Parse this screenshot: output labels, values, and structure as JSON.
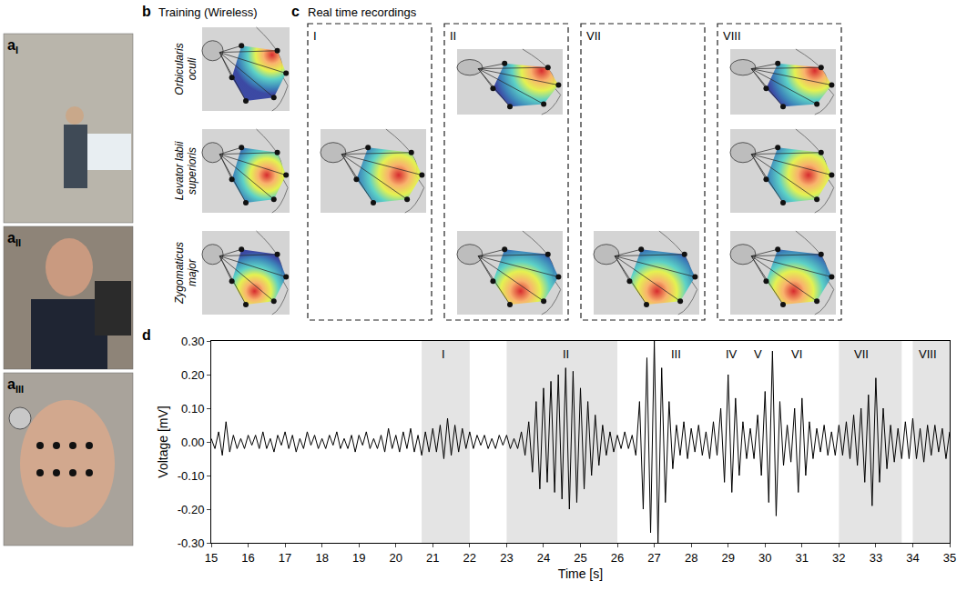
{
  "panel_a": {
    "label": "a",
    "photos": [
      "I",
      "II",
      "III"
    ]
  },
  "panel_b": {
    "label": "b",
    "title": "Training (Wireless)",
    "muscles": [
      "Orbicularis oculi",
      "Levator labii superioris",
      "Zygomaticus major"
    ]
  },
  "panel_c": {
    "label": "c",
    "title": "Real time recordings",
    "windows": [
      {
        "label": "I",
        "shows": [
          "Levator labii superioris"
        ]
      },
      {
        "label": "II",
        "shows": [
          "Orbicularis oculi",
          "Zygomaticus major"
        ]
      },
      {
        "label": "VII",
        "shows": [
          "Zygomaticus major"
        ]
      },
      {
        "label": "VIII",
        "shows": [
          "Orbicularis oculi",
          "Levator labii superioris",
          "Zygomaticus major"
        ]
      }
    ]
  },
  "chart_data": {
    "label": "d",
    "type": "line",
    "color": "#000000",
    "xlabel": "Time [s]",
    "ylabel": "Voltage [mV]",
    "xlim": [
      15,
      35
    ],
    "xticks": [
      15,
      16,
      17,
      18,
      19,
      20,
      21,
      22,
      23,
      24,
      25,
      26,
      27,
      28,
      29,
      30,
      31,
      32,
      33,
      34,
      35
    ],
    "ylim": [
      -0.3,
      0.3
    ],
    "yticks": [
      {
        "value": -0.3,
        "label": "-0.30"
      },
      {
        "value": -0.2,
        "label": "-0.20"
      },
      {
        "value": -0.1,
        "label": "-0.10"
      },
      {
        "value": 0,
        "label": "0.00"
      },
      {
        "value": 0.1,
        "label": "0.10"
      },
      {
        "value": 0.2,
        "label": "0.20"
      },
      {
        "value": 0.3,
        "label": "0.30"
      }
    ],
    "shaded_regions": [
      {
        "label": "I",
        "start": 20.7,
        "end": 22
      },
      {
        "label": "II",
        "start": 23,
        "end": 26
      },
      {
        "label": "VII",
        "start": 32,
        "end": 33.7
      },
      {
        "label": "VIII",
        "start": 34,
        "end": 35
      }
    ],
    "annotations": [
      {
        "text": "I",
        "x": 21.3,
        "y": 0.26
      },
      {
        "text": "II",
        "x": 24.6,
        "y": 0.26
      },
      {
        "text": "III",
        "x": 27.6,
        "y": 0.26
      },
      {
        "text": "IV",
        "x": 29.1,
        "y": 0.26
      },
      {
        "text": "V",
        "x": 29.8,
        "y": 0.26
      },
      {
        "text": "VI",
        "x": 30.85,
        "y": 0.26
      },
      {
        "text": "VII",
        "x": 32.6,
        "y": 0.26
      },
      {
        "text": "VIII",
        "x": 34.4,
        "y": 0.26
      }
    ],
    "x": [
      15.0,
      15.1,
      15.2,
      15.3,
      15.4,
      15.5,
      15.6,
      15.7,
      15.8,
      15.9,
      16.0,
      16.1,
      16.2,
      16.3,
      16.4,
      16.5,
      16.6,
      16.7,
      16.8,
      16.9,
      17.0,
      17.1,
      17.2,
      17.3,
      17.4,
      17.5,
      17.6,
      17.7,
      17.8,
      17.9,
      18.0,
      18.1,
      18.2,
      18.3,
      18.4,
      18.5,
      18.6,
      18.7,
      18.8,
      18.9,
      19.0,
      19.1,
      19.2,
      19.3,
      19.4,
      19.5,
      19.6,
      19.7,
      19.8,
      19.9,
      20.0,
      20.1,
      20.2,
      20.3,
      20.4,
      20.5,
      20.6,
      20.7,
      20.8,
      20.9,
      21.0,
      21.1,
      21.2,
      21.3,
      21.4,
      21.5,
      21.6,
      21.7,
      21.8,
      21.9,
      22.0,
      22.1,
      22.2,
      22.3,
      22.4,
      22.5,
      22.6,
      22.7,
      22.8,
      22.9,
      23.0,
      23.1,
      23.2,
      23.3,
      23.4,
      23.5,
      23.6,
      23.7,
      23.8,
      23.9,
      24.0,
      24.1,
      24.2,
      24.3,
      24.4,
      24.5,
      24.6,
      24.7,
      24.8,
      24.9,
      25.0,
      25.1,
      25.2,
      25.3,
      25.4,
      25.5,
      25.6,
      25.7,
      25.8,
      25.9,
      26.0,
      26.1,
      26.2,
      26.3,
      26.4,
      26.5,
      26.6,
      26.7,
      26.8,
      26.9,
      27.0,
      27.1,
      27.2,
      27.3,
      27.4,
      27.5,
      27.6,
      27.7,
      27.8,
      27.9,
      28.0,
      28.1,
      28.2,
      28.3,
      28.4,
      28.5,
      28.6,
      28.7,
      28.8,
      28.9,
      29.0,
      29.1,
      29.2,
      29.3,
      29.4,
      29.5,
      29.6,
      29.7,
      29.8,
      29.9,
      30.0,
      30.1,
      30.2,
      30.3,
      30.4,
      30.5,
      30.6,
      30.7,
      30.8,
      30.9,
      31.0,
      31.1,
      31.2,
      31.3,
      31.4,
      31.5,
      31.6,
      31.7,
      31.8,
      31.9,
      32.0,
      32.1,
      32.2,
      32.3,
      32.4,
      32.5,
      32.6,
      32.7,
      32.8,
      32.9,
      33.0,
      33.1,
      33.2,
      33.3,
      33.4,
      33.5,
      33.6,
      33.7,
      33.8,
      33.9,
      34.0,
      34.1,
      34.2,
      34.3,
      34.4,
      34.5,
      34.6,
      34.7,
      34.8,
      34.9,
      35.0
    ],
    "values": [
      0.01,
      -0.02,
      0.03,
      -0.04,
      0.06,
      -0.03,
      0.02,
      -0.02,
      0.01,
      -0.02,
      0.02,
      -0.01,
      0.02,
      -0.02,
      0.03,
      -0.02,
      0.01,
      -0.03,
      0.02,
      -0.01,
      0.03,
      -0.02,
      0.02,
      -0.03,
      0.01,
      -0.02,
      0.03,
      -0.01,
      0.02,
      -0.02,
      0.01,
      -0.02,
      0.02,
      -0.01,
      0.03,
      -0.02,
      0.01,
      -0.02,
      0.02,
      -0.03,
      0.02,
      -0.01,
      0.03,
      -0.02,
      0.01,
      -0.02,
      0.02,
      -0.03,
      0.04,
      -0.02,
      0.02,
      -0.03,
      0.03,
      -0.02,
      0.04,
      -0.03,
      0.02,
      -0.04,
      0.03,
      -0.03,
      0.04,
      -0.03,
      0.05,
      -0.05,
      0.07,
      -0.04,
      0.05,
      -0.03,
      0.04,
      -0.02,
      0.03,
      -0.02,
      0.02,
      -0.01,
      0.02,
      -0.02,
      0.01,
      -0.02,
      0.02,
      -0.01,
      0.02,
      -0.02,
      0.01,
      -0.02,
      0.03,
      -0.04,
      0.06,
      -0.09,
      0.12,
      -0.14,
      0.16,
      -0.12,
      0.18,
      -0.15,
      0.2,
      -0.17,
      0.22,
      -0.2,
      0.21,
      -0.18,
      0.16,
      -0.14,
      0.12,
      -0.1,
      0.08,
      -0.07,
      0.05,
      -0.04,
      0.03,
      -0.03,
      0.02,
      -0.02,
      0.03,
      -0.02,
      0.02,
      -0.04,
      0.12,
      -0.2,
      0.25,
      -0.27,
      0.3,
      -0.3,
      0.22,
      -0.18,
      0.12,
      -0.08,
      0.05,
      -0.04,
      0.06,
      -0.05,
      0.04,
      -0.03,
      0.05,
      -0.04,
      0.03,
      -0.05,
      0.06,
      -0.04,
      0.1,
      -0.12,
      0.2,
      -0.15,
      0.13,
      -0.1,
      0.06,
      -0.05,
      0.04,
      -0.05,
      0.08,
      -0.1,
      0.15,
      -0.18,
      0.27,
      -0.22,
      0.12,
      -0.07,
      0.05,
      -0.06,
      0.1,
      -0.15,
      0.13,
      -0.1,
      0.06,
      -0.05,
      0.04,
      -0.03,
      0.05,
      -0.04,
      0.03,
      -0.04,
      0.05,
      -0.04,
      0.06,
      -0.05,
      0.08,
      -0.07,
      0.1,
      -0.12,
      0.14,
      -0.19,
      0.19,
      -0.12,
      0.1,
      -0.08,
      0.05,
      -0.06,
      0.04,
      -0.05,
      0.06,
      -0.05,
      0.07,
      -0.05,
      0.04,
      -0.06,
      0.05,
      -0.04,
      0.05,
      -0.03,
      0.04,
      -0.05,
      0.03
    ]
  }
}
